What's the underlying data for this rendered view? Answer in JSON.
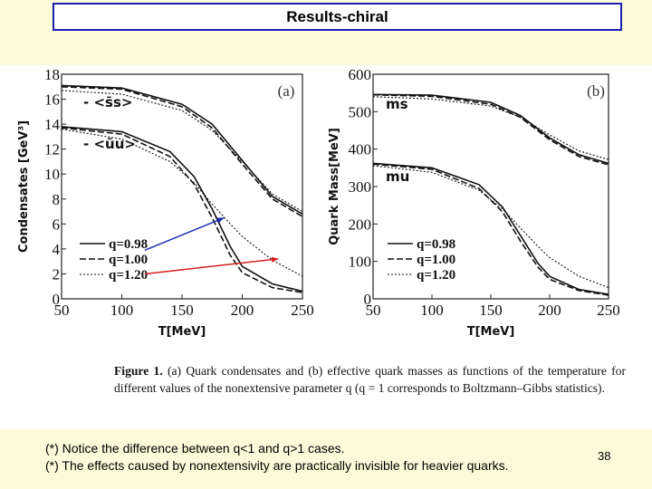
{
  "slide": {
    "title": "Results-chiral",
    "page_number": "38",
    "notes": [
      "(*) Notice the difference between q<1 and q>1 cases.",
      "(*) The effects caused by nonextensivity are practically invisible for heavier quarks."
    ]
  },
  "caption": {
    "figure_label": "Figure 1.",
    "text": "(a) Quark condensates and (b) effective quark masses as functions of the temperature for different values of the nonextensive parameter q (q = 1 corresponds to Boltzmann–Gibbs statistics)."
  },
  "colors": {
    "arrow_blue": "#1f2fb5",
    "arrow_red": "#d42020",
    "title_border": "#1f1fb0",
    "background": "#fbfbd9"
  },
  "chart_data": [
    {
      "type": "line",
      "panel_label": "(a)",
      "xlabel": "T[MeV]",
      "ylabel": "Condensates [GeV³]",
      "xlim": [
        50,
        250
      ],
      "ylim": [
        0,
        18
      ],
      "x_ticks": [
        "50",
        "100",
        "150",
        "200",
        "250"
      ],
      "y_ticks": [
        "0",
        "2",
        "4",
        "6",
        "8",
        "10",
        "12",
        "14",
        "16",
        "18"
      ],
      "annotations": [
        "- <s̄s>",
        "- <ūu>"
      ],
      "legend": [
        "q=0.98",
        "q=1.00",
        "q=1.20"
      ],
      "curves": [
        {
          "quark": "s",
          "q": "0.98",
          "x": [
            50,
            100,
            150,
            175,
            200,
            225,
            250
          ],
          "y": [
            17.1,
            16.9,
            15.6,
            14.0,
            11.1,
            8.2,
            6.8
          ]
        },
        {
          "quark": "s",
          "q": "1.00",
          "x": [
            50,
            100,
            150,
            175,
            200,
            225,
            250
          ],
          "y": [
            17.0,
            16.8,
            15.4,
            13.7,
            10.8,
            8.0,
            6.6
          ]
        },
        {
          "quark": "s",
          "q": "1.20",
          "x": [
            50,
            100,
            150,
            175,
            200,
            225,
            250
          ],
          "y": [
            16.7,
            16.4,
            15.1,
            13.5,
            11.0,
            8.4,
            7.0
          ]
        },
        {
          "quark": "u",
          "q": "0.98",
          "x": [
            50,
            100,
            140,
            160,
            175,
            190,
            200,
            225,
            250
          ],
          "y": [
            13.8,
            13.4,
            11.8,
            9.8,
            7.2,
            4.2,
            2.6,
            1.2,
            0.6
          ]
        },
        {
          "quark": "u",
          "q": "1.00",
          "x": [
            50,
            100,
            140,
            160,
            175,
            190,
            200,
            225,
            250
          ],
          "y": [
            13.7,
            13.2,
            11.4,
            9.2,
            6.5,
            3.5,
            2.1,
            0.9,
            0.5
          ]
        },
        {
          "quark": "u",
          "q": "1.20",
          "x": [
            50,
            100,
            140,
            160,
            175,
            190,
            200,
            225,
            250
          ],
          "y": [
            13.6,
            12.8,
            11.0,
            9.3,
            7.6,
            6.0,
            5.0,
            3.1,
            1.8
          ]
        }
      ],
      "arrows": [
        {
          "color": "blue",
          "from": [
            222,
            3.9
          ],
          "to": [
            185,
            6.5
          ]
        },
        {
          "color": "red",
          "from": [
            222,
            2.0
          ],
          "to": [
            230,
            3.2
          ]
        }
      ]
    },
    {
      "type": "line",
      "panel_label": "(b)",
      "xlabel": "T[MeV]",
      "ylabel": "Quark Mass[MeV]",
      "xlim": [
        50,
        250
      ],
      "ylim": [
        0,
        600
      ],
      "x_ticks": [
        "50",
        "100",
        "150",
        "200",
        "250"
      ],
      "y_ticks": [
        "0",
        "100",
        "200",
        "300",
        "400",
        "500",
        "600"
      ],
      "annotations": [
        "ms",
        "mu"
      ],
      "legend": [
        "q=0.98",
        "q=1.00",
        "q=1.20"
      ],
      "curves": [
        {
          "quark": "s",
          "q": "0.98",
          "x": [
            50,
            100,
            150,
            175,
            200,
            225,
            250
          ],
          "y": [
            546,
            544,
            525,
            490,
            430,
            385,
            362
          ]
        },
        {
          "quark": "s",
          "q": "1.00",
          "x": [
            50,
            100,
            150,
            175,
            200,
            225,
            250
          ],
          "y": [
            545,
            541,
            520,
            485,
            425,
            380,
            358
          ]
        },
        {
          "quark": "s",
          "q": "1.20",
          "x": [
            50,
            100,
            150,
            175,
            200,
            225,
            250
          ],
          "y": [
            540,
            534,
            515,
            485,
            438,
            395,
            372
          ]
        },
        {
          "quark": "u",
          "q": "0.98",
          "x": [
            50,
            100,
            140,
            160,
            175,
            190,
            200,
            225,
            250
          ],
          "y": [
            362,
            350,
            305,
            245,
            170,
            95,
            60,
            25,
            12
          ]
        },
        {
          "quark": "u",
          "q": "1.00",
          "x": [
            50,
            100,
            140,
            160,
            175,
            190,
            200,
            225,
            250
          ],
          "y": [
            360,
            346,
            295,
            232,
            155,
            85,
            52,
            22,
            10
          ]
        },
        {
          "quark": "u",
          "q": "1.20",
          "x": [
            50,
            100,
            140,
            160,
            175,
            190,
            200,
            225,
            250
          ],
          "y": [
            356,
            338,
            290,
            240,
            190,
            140,
            110,
            60,
            30
          ]
        }
      ]
    }
  ]
}
